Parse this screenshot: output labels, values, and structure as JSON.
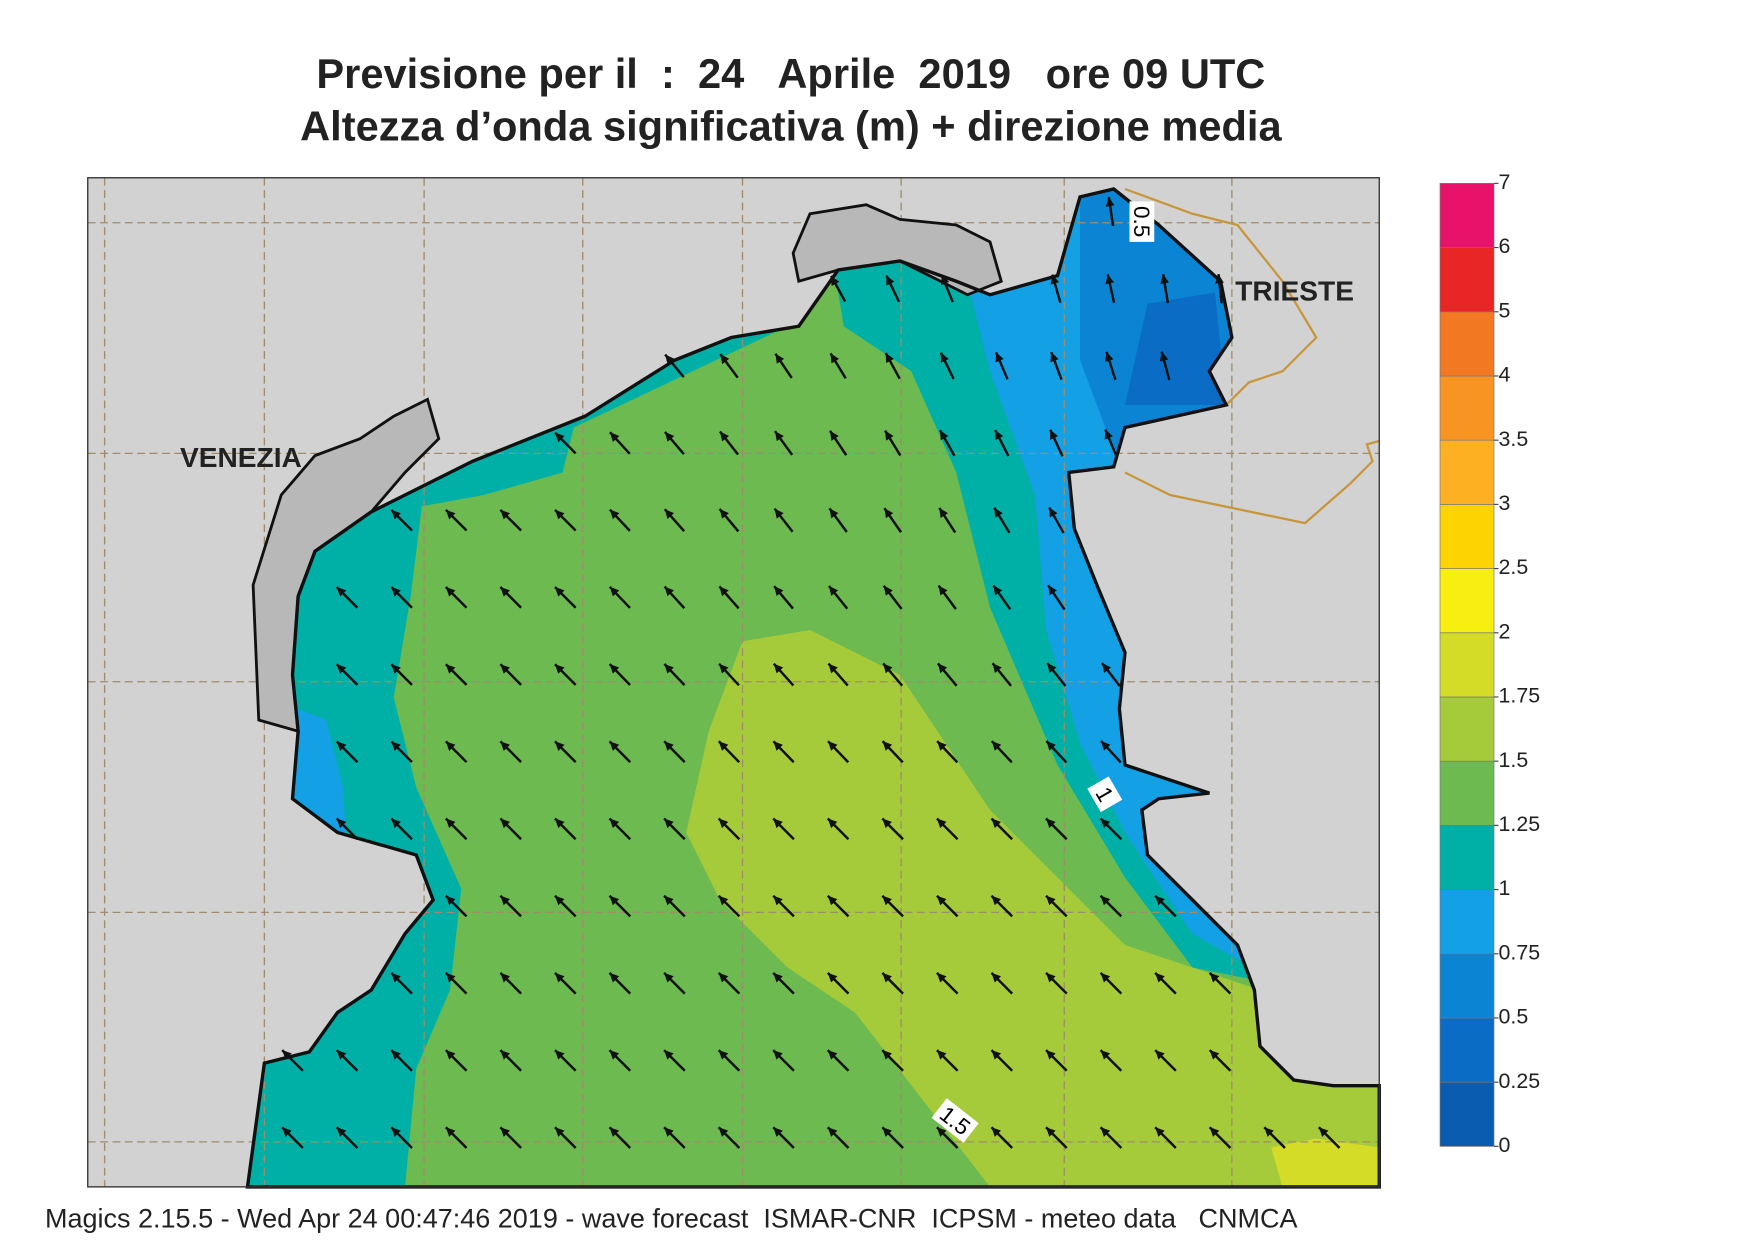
{
  "title": {
    "line1": "Previsione per il  :  24   Aprile  2019   ore 09 UTC",
    "line2": "Altezza d’onda significativa (m) + direzione media"
  },
  "map": {
    "place_labels": [
      "VENEZIA",
      "TRIESTE"
    ],
    "contour_labels": [
      "0.5",
      "1",
      "1.5"
    ]
  },
  "colorbar": {
    "ticks": [
      0,
      0.25,
      0.5,
      0.75,
      1,
      1.25,
      1.5,
      1.75,
      2,
      2.5,
      3,
      3.5,
      4,
      5,
      6,
      7
    ],
    "colors": [
      "#0a5cb0",
      "#0a6cc4",
      "#0c84d4",
      "#14a0e4",
      "#00b0a6",
      "#6cba50",
      "#a6cb3a",
      "#d4dc28",
      "#f6ef10",
      "#fed400",
      "#fcb022",
      "#f89422",
      "#f27822",
      "#e82626",
      "#e8126a"
    ]
  },
  "footer": "Magics 2.15.5 - Wed Apr 24 00:47:46 2019 - wave forecast  ISMAR-CNR  ICPSM - meteo data   CNMCA"
}
